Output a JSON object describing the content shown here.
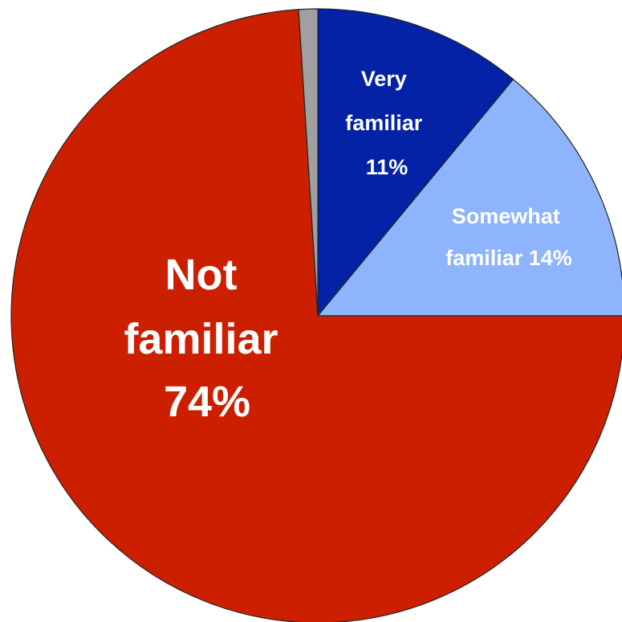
{
  "chart_data": {
    "type": "pie",
    "title": "",
    "start_angle_deg": 0,
    "direction": "clockwise",
    "slices": [
      {
        "key": "very",
        "value": 11,
        "color": "#0422A6",
        "label_lines": [
          "Very",
          "familiar",
          "11%"
        ]
      },
      {
        "key": "somewhat",
        "value": 14,
        "color": "#8DB4FC",
        "label_lines": [
          "Somewhat",
          "familiar 14%"
        ]
      },
      {
        "key": "not",
        "value": 74,
        "color": "#CC1F00",
        "label_lines": [
          "Not",
          "familiar",
          "74%"
        ]
      },
      {
        "key": "other",
        "value": 1,
        "color": "#A0A0A0",
        "label_lines": []
      }
    ]
  }
}
